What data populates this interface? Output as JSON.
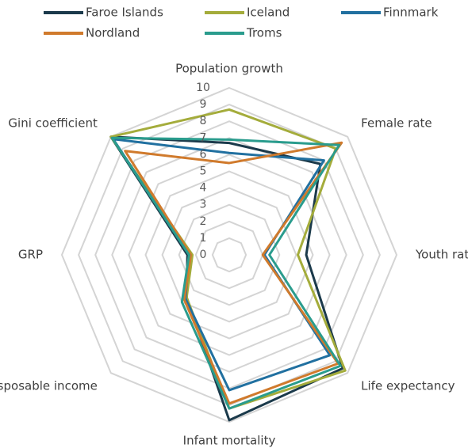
{
  "chart_data": {
    "type": "radar",
    "categories": [
      "Population growth",
      "Female rate",
      "Youth rate",
      "Life expectancy",
      "Infant mortality",
      "Disposable income",
      "GRP",
      "Gini coefficient"
    ],
    "rlim": [
      0,
      10
    ],
    "rticks": [
      0,
      1,
      2,
      3,
      4,
      5,
      6,
      7,
      8,
      9,
      10
    ],
    "grid": true,
    "legend": "top",
    "series": [
      {
        "name": "Faroe Islands",
        "color": "#1b3a4b",
        "values": [
          6.7,
          7.7,
          4.6,
          9.6,
          9.9,
          3.6,
          2.5,
          10.0
        ]
      },
      {
        "name": "Iceland",
        "color": "#a4ac3b",
        "values": [
          8.7,
          9.0,
          4.1,
          9.8,
          9.2,
          3.6,
          2.2,
          10.0
        ]
      },
      {
        "name": "Finnmark",
        "color": "#2170a0",
        "values": [
          6.1,
          8.0,
          2.1,
          8.5,
          8.1,
          3.7,
          2.4,
          9.8
        ]
      },
      {
        "name": "Nordland",
        "color": "#d07a2c",
        "values": [
          5.5,
          9.5,
          2.0,
          9.2,
          8.9,
          3.8,
          2.3,
          8.8
        ]
      },
      {
        "name": "Troms",
        "color": "#2a9c8d",
        "values": [
          6.9,
          9.3,
          2.4,
          9.4,
          9.2,
          4.0,
          2.4,
          9.9
        ]
      }
    ]
  }
}
